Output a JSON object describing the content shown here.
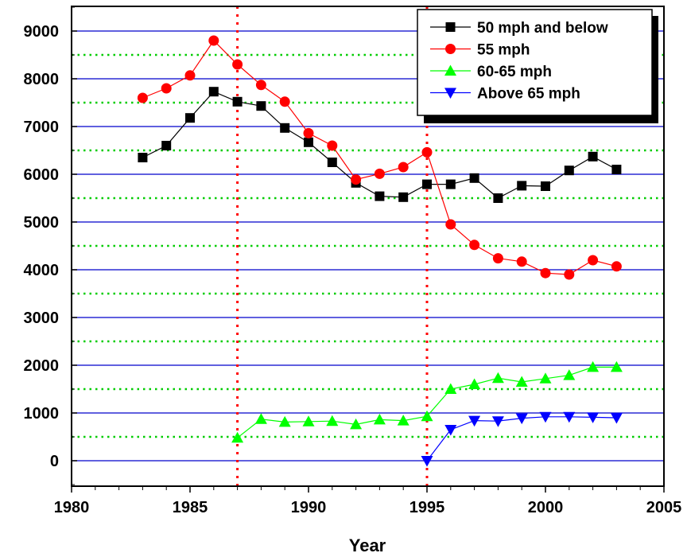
{
  "chart_data": {
    "type": "line",
    "title": "",
    "xlabel": "Year",
    "ylabel": "",
    "xlim": [
      1980,
      2005
    ],
    "ylim": [
      -500,
      9500
    ],
    "x_ticks": [
      1980,
      1985,
      1990,
      1995,
      2000,
      2005
    ],
    "y_ticks": [
      0,
      1000,
      2000,
      3000,
      4000,
      5000,
      6000,
      7000,
      8000,
      9000
    ],
    "grid": "major solid blue lines at every 1000, minor dotted green lines at every 500",
    "vertical_markers": [
      1987,
      1995
    ],
    "legend_position": "top-right",
    "series": [
      {
        "name": "50 mph and below",
        "color": "#000000",
        "marker": "square",
        "x": [
          1983,
          1984,
          1985,
          1986,
          1987,
          1988,
          1989,
          1990,
          1991,
          1992,
          1993,
          1994,
          1995,
          1996,
          1997,
          1998,
          1999,
          2000,
          2001,
          2002,
          2003
        ],
        "values": [
          6350,
          6600,
          7180,
          7730,
          7520,
          7430,
          6970,
          6670,
          6250,
          5820,
          5540,
          5520,
          5790,
          5790,
          5920,
          5500,
          5760,
          5750,
          6080,
          6370,
          6100
        ]
      },
      {
        "name": "55 mph",
        "color": "#ff0000",
        "marker": "circle",
        "x": [
          1983,
          1984,
          1985,
          1986,
          1987,
          1988,
          1989,
          1990,
          1991,
          1992,
          1993,
          1994,
          1995,
          1996,
          1997,
          1998,
          1999,
          2000,
          2001,
          2002,
          2003
        ],
        "values": [
          7600,
          7800,
          8070,
          8800,
          8300,
          7870,
          7520,
          6860,
          6600,
          5890,
          6010,
          6150,
          6460,
          4950,
          4520,
          4240,
          4170,
          3930,
          3900,
          4200,
          4070
        ]
      },
      {
        "name": "60-65 mph",
        "color": "#00ff00",
        "marker": "triangle-up",
        "x": [
          1987,
          1988,
          1989,
          1990,
          1991,
          1992,
          1993,
          1994,
          1995,
          1996,
          1997,
          1998,
          1999,
          2000,
          2001,
          2002,
          2003
        ],
        "values": [
          480,
          870,
          810,
          820,
          830,
          760,
          860,
          840,
          930,
          1500,
          1600,
          1730,
          1650,
          1720,
          1790,
          1960,
          1960
        ]
      },
      {
        "name": "Above 65 mph",
        "color": "#0000ff",
        "marker": "triangle-down",
        "x": [
          1995,
          1996,
          1997,
          1998,
          1999,
          2000,
          2001,
          2002,
          2003
        ],
        "values": [
          0,
          650,
          840,
          830,
          890,
          920,
          920,
          910,
          900
        ]
      }
    ]
  }
}
